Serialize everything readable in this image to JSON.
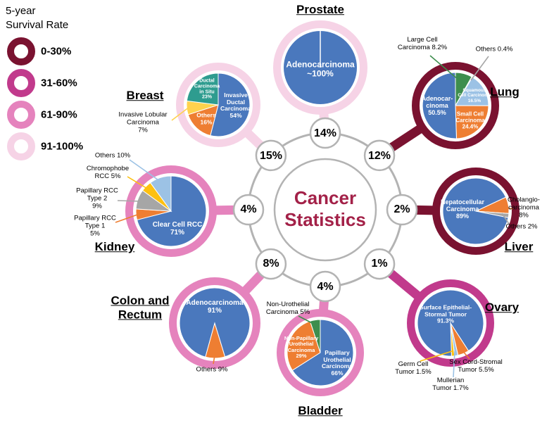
{
  "figure": {
    "center": {
      "title": "Cancer\nStatistics",
      "color": "#a32148"
    },
    "legend": {
      "title": "5-year\nSurvival Rate",
      "items": [
        {
          "label": "0-30%",
          "color": "#7a1230"
        },
        {
          "label": "31-60%",
          "color": "#c13a8c"
        },
        {
          "label": "61-90%",
          "color": "#e583bd"
        },
        {
          "label": "91-100%",
          "color": "#f6d3e6"
        }
      ]
    }
  },
  "chart_data": [
    {
      "type": "pie",
      "title": "Prostate",
      "share_of_cancer_cases": "14%",
      "survival_band": "91-100%",
      "ring_color": "#f6d3e6",
      "slices": [
        {
          "label": "Adenocarcinoma",
          "value": 100,
          "display": "Adenocarcinoma\n~100%",
          "color": "#4a78bd"
        }
      ]
    },
    {
      "type": "pie",
      "title": "Lung",
      "share_of_cancer_cases": "12%",
      "survival_band": "0-30%",
      "ring_color": "#7a1230",
      "slices": [
        {
          "label": "Large Cell Carcinoma",
          "value": 8.2,
          "display": "Large Cell\nCarcinoma 8.2%",
          "color": "#3e8e4e"
        },
        {
          "label": "Others",
          "value": 0.4,
          "display": "Others 0.4%",
          "color": "#a6a6a6"
        },
        {
          "label": "Squamous Cell Carcinoma",
          "value": 16.5,
          "display": "Squamous\nCell Carcinoma\n16.5%",
          "color": "#9cc2e5"
        },
        {
          "label": "Small Cell Carcinoma",
          "value": 24.4,
          "display": "Small Cell\nCarcinoma\n24.4%",
          "color": "#ee7e32"
        },
        {
          "label": "Adenocarcinoma",
          "value": 50.5,
          "display": "Adenocar-\ncinoma\n50.5%",
          "color": "#4a78bd"
        }
      ]
    },
    {
      "type": "pie",
      "title": "Liver",
      "share_of_cancer_cases": "2%",
      "survival_band": "0-30%",
      "ring_color": "#7a1230",
      "slices": [
        {
          "label": "Cholangiocarcinoma",
          "value": 8,
          "display": "Cholangio-\ncarcinoma\n8%",
          "color": "#ee7e32"
        },
        {
          "label": "Others",
          "value": 2,
          "display": "Others 2%",
          "color": "#a6a6a6"
        },
        {
          "label": "Hepatocellular Carcinoma",
          "value": 89,
          "display": "Hepatocellular\nCarcinoma\n89%",
          "color": "#4a78bd"
        }
      ]
    },
    {
      "type": "pie",
      "title": "Ovary",
      "share_of_cancer_cases": "1%",
      "survival_band": "31-60%",
      "ring_color": "#c13a8c",
      "slices": [
        {
          "label": "Sex Cord-Stromal Tumor",
          "value": 5.5,
          "display": "Sex Cord-Stromal\nTumor 5.5%",
          "color": "#ee7e32"
        },
        {
          "label": "Mullerian Tumor",
          "value": 1.7,
          "display": "Mullerian\nTumor 1.7%",
          "color": "#9cc2e5"
        },
        {
          "label": "Germ Cell Tumor",
          "value": 1.5,
          "display": "Germ Cell\nTumor 1.5%",
          "color": "#fdc010"
        },
        {
          "label": "Surface Epithelial-Stormal Tumor",
          "value": 91.3,
          "display": "Surface Epithelial-\nStormal Tumor\n91.3%",
          "color": "#4a78bd"
        }
      ]
    },
    {
      "type": "pie",
      "title": "Bladder",
      "share_of_cancer_cases": "4%",
      "survival_band": "61-90%",
      "ring_color": "#e583bd",
      "slices": [
        {
          "label": "Papillary Urothelial Carcinoma",
          "value": 66,
          "display": "Papillary\nUrothelial\nCarcinoma\n66%",
          "color": "#4a78bd"
        },
        {
          "label": "Non-Papillary Urothelial Carcinoma",
          "value": 29,
          "display": "Non-Papillary\nUrothelial\nCarcinoma\n29%",
          "color": "#ee7e32"
        },
        {
          "label": "Non-Urothelial Carcinoma",
          "value": 5,
          "display": "Non-Urothelial\nCarcinoma 5%",
          "color": "#3e8e4e"
        }
      ]
    },
    {
      "type": "pie",
      "title": "Colon and Rectum",
      "share_of_cancer_cases": "8%",
      "survival_band": "61-90%",
      "ring_color": "#e583bd",
      "slices": [
        {
          "label": "Others",
          "value": 9,
          "display": "Others 9%",
          "color": "#ee7e32"
        },
        {
          "label": "Adenocarcinoma",
          "value": 91,
          "display": "Adenocarcinoma\n91%",
          "color": "#4a78bd"
        }
      ]
    },
    {
      "type": "pie",
      "title": "Kidney",
      "share_of_cancer_cases": "4%",
      "survival_band": "61-90%",
      "ring_color": "#e583bd",
      "slices": [
        {
          "label": "Clear Cell RCC",
          "value": 71,
          "display": "Clear Cell RCC\n71%",
          "color": "#4a78bd"
        },
        {
          "label": "Papillary RCC Type 1",
          "value": 5,
          "display": "Papillary RCC\nType 1\n5%",
          "color": "#ee7e32"
        },
        {
          "label": "Papillary RCC Type 2",
          "value": 9,
          "display": "Papillary RCC\nType 2\n9%",
          "color": "#a6a6a6"
        },
        {
          "label": "Chromophobe RCC",
          "value": 5,
          "display": "Chromophobe\nRCC 5%",
          "color": "#fdc010"
        },
        {
          "label": "Others",
          "value": 10,
          "display": "Others 10%",
          "color": "#9cc2e5"
        }
      ]
    },
    {
      "type": "pie",
      "title": "Breast",
      "share_of_cancer_cases": "15%",
      "survival_band": "91-100%",
      "ring_color": "#f6d3e6",
      "slices": [
        {
          "label": "Invasive Ductal Carcinoma",
          "value": 54,
          "display": "Invasive\nDuctal\nCarcinoma\n54%",
          "color": "#4a78bd"
        },
        {
          "label": "Others",
          "value": 16,
          "display": "Others\n16%",
          "color": "#ee7e32"
        },
        {
          "label": "Invasive Lobular Carcinoma",
          "value": 7,
          "display": "Invasive Lobular\nCarcinoma\n7%",
          "color": "#ffd24d"
        },
        {
          "label": "Ductal Carcinoma in Situ",
          "value": 23,
          "display": "Ductal\nCarcinoma\nin Situ\n23%",
          "color": "#2e9c8f"
        }
      ]
    }
  ]
}
